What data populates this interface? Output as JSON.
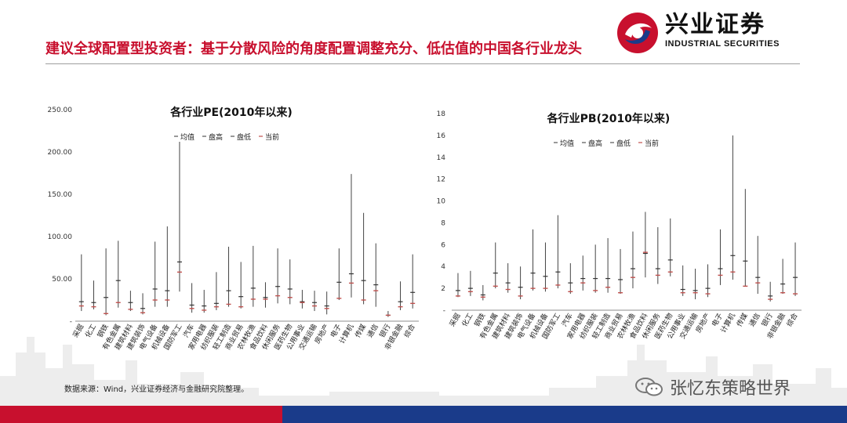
{
  "header": {
    "logo_cn": "兴业证券",
    "logo_en": "INDUSTRIAL SECURITIES",
    "title": "建议全球配置型投资者：基于分散风险的角度配置调整充分、低估值的中国各行业龙头"
  },
  "footer": {
    "source": "数据来源：Wind，兴业证券经济与金融研究院整理。",
    "watermark": "张忆东策略世界"
  },
  "colors": {
    "brand_red": "#c8102e",
    "brand_blue": "#1a3b8a",
    "range_line": "#444444",
    "current_mark": "#c0504d"
  },
  "chart_data": [
    {
      "type": "range",
      "title": "各行业PE(2010年以来)",
      "legend": [
        "均值",
        "盘高",
        "盘低",
        "当前"
      ],
      "legend_position": "top",
      "ylim": [
        0,
        250
      ],
      "yticks": [
        "-",
        "50.00",
        "100.00",
        "150.00",
        "200.00",
        "250.00"
      ],
      "grid": false,
      "categories": [
        "采掘",
        "化工",
        "钢铁",
        "有色金属",
        "建筑材料",
        "建筑装饰",
        "电气设备",
        "机械设备",
        "国防军工",
        "汽车",
        "家用电器",
        "纺织服装",
        "轻工制造",
        "商业贸易",
        "农林牧渔",
        "食品饮料",
        "休闲服务",
        "医药生物",
        "公用事业",
        "交通运输",
        "房地产",
        "电子",
        "计算机",
        "传媒",
        "通信",
        "银行",
        "非银金融",
        "综合"
      ],
      "series": [
        {
          "name": "均值",
          "values": [
            23,
            22,
            28,
            48,
            22,
            15,
            38,
            36,
            70,
            19,
            18,
            21,
            36,
            29,
            39,
            28,
            41,
            38,
            23,
            22,
            18,
            46,
            56,
            48,
            43,
            7,
            23,
            34
          ]
        },
        {
          "name": "盘高",
          "values": [
            79,
            48,
            86,
            95,
            36,
            33,
            94,
            112,
            212,
            45,
            37,
            58,
            88,
            70,
            89,
            46,
            86,
            73,
            37,
            36,
            35,
            86,
            174,
            128,
            92,
            12,
            47,
            79
          ]
        },
        {
          "name": "盘低",
          "values": [
            12,
            14,
            7,
            16,
            12,
            8,
            17,
            17,
            35,
            10,
            10,
            13,
            17,
            15,
            17,
            16,
            21,
            20,
            15,
            12,
            8,
            25,
            28,
            20,
            17,
            5,
            13,
            15
          ]
        },
        {
          "name": "当前",
          "values": [
            18,
            17,
            9,
            22,
            14,
            10,
            25,
            25,
            58,
            15,
            13,
            17,
            20,
            17,
            26,
            26,
            30,
            28,
            22,
            18,
            15,
            27,
            45,
            25,
            36,
            7,
            17,
            21
          ]
        }
      ]
    },
    {
      "type": "range",
      "title": "各行业PB(2010年以来)",
      "legend": [
        "均值",
        "盘高",
        "盘低",
        "当前"
      ],
      "legend_position": "top",
      "ylim": [
        0,
        18
      ],
      "yticks": [
        "-",
        "2",
        "4",
        "6",
        "8",
        "10",
        "12",
        "14",
        "16",
        "18"
      ],
      "grid": false,
      "categories": [
        "采掘",
        "化工",
        "钢铁",
        "有色金属",
        "建筑材料",
        "建筑装饰",
        "电气设备",
        "机械设备",
        "国防军工",
        "汽车",
        "家用电器",
        "纺织服装",
        "轻工制造",
        "商业贸易",
        "农林牧渔",
        "食品饮料",
        "休闲服务",
        "医药生物",
        "公用事业",
        "交通运输",
        "房地产",
        "电子",
        "计算机",
        "传媒",
        "通信",
        "银行",
        "非银金融",
        "综合"
      ],
      "series": [
        {
          "name": "均值",
          "values": [
            1.8,
            2.0,
            1.4,
            3.4,
            2.5,
            2.1,
            3.4,
            3.1,
            3.5,
            2.5,
            2.9,
            2.9,
            2.9,
            2.8,
            3.8,
            5.2,
            3.8,
            4.6,
            1.9,
            1.8,
            2.0,
            3.8,
            5.0,
            4.5,
            3.0,
            1.3,
            2.4,
            3.0
          ]
        },
        {
          "name": "盘高",
          "values": [
            3.4,
            3.6,
            2.3,
            6.2,
            4.3,
            4.0,
            7.4,
            6.2,
            8.7,
            4.3,
            5.0,
            6.0,
            6.6,
            5.6,
            7.2,
            9.0,
            7.6,
            8.4,
            4.1,
            3.8,
            4.2,
            7.4,
            16.0,
            11.1,
            6.8,
            2.6,
            4.7,
            6.2
          ]
        },
        {
          "name": "盘低",
          "values": [
            1.2,
            1.3,
            0.9,
            2.0,
            1.6,
            1.0,
            1.8,
            1.7,
            2.0,
            1.5,
            1.8,
            1.6,
            1.6,
            1.5,
            2.0,
            3.0,
            2.4,
            3.1,
            1.3,
            1.0,
            1.2,
            2.3,
            2.8,
            2.2,
            1.5,
            0.8,
            1.5,
            1.3
          ]
        },
        {
          "name": "当前",
          "values": [
            1.3,
            1.7,
            1.2,
            2.2,
            1.9,
            1.3,
            2.0,
            2.0,
            2.3,
            1.7,
            2.5,
            1.8,
            2.1,
            1.6,
            3.0,
            5.3,
            3.2,
            3.5,
            1.6,
            1.6,
            1.5,
            3.2,
            3.5,
            2.2,
            2.5,
            1.0,
            1.6,
            1.5
          ]
        }
      ]
    }
  ]
}
